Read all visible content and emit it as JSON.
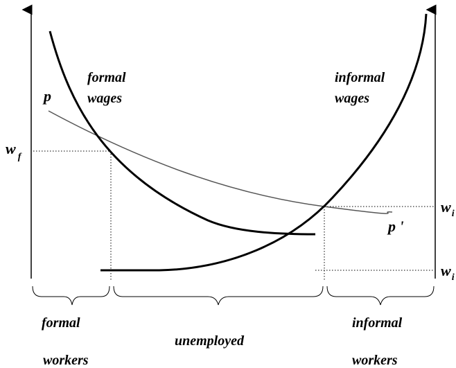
{
  "labels": {
    "formal_wages": [
      "formal",
      "wages"
    ],
    "informal_wages": [
      "informal",
      "wages"
    ],
    "p": "p",
    "p_prime": "p '",
    "wf": {
      "base": "w",
      "sub": "f"
    },
    "wi_upper": {
      "base": "w",
      "sub": "i"
    },
    "wi_lower": {
      "base": "w",
      "sub": "i"
    },
    "formal_workers": [
      "formal",
      "workers"
    ],
    "unemployed": "unemployed",
    "informal_workers": [
      "informal",
      "workers"
    ]
  }
}
